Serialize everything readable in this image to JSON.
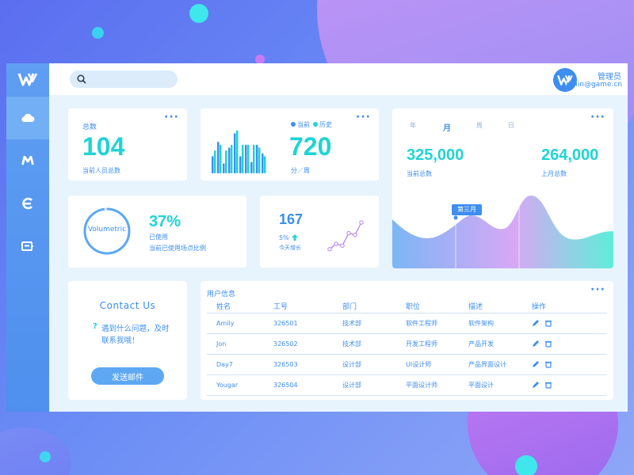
{
  "app": {
    "logo_text": "W"
  },
  "search": {
    "placeholder": ""
  },
  "user": {
    "avatar_text": "W",
    "name": "管理员",
    "email": "admin@game.cn"
  },
  "colors": {
    "accent": "#3d8ef0",
    "teal": "#1fd4d4",
    "sidebar": "#5f9ef2"
  },
  "sidebar": {
    "items": [
      {
        "icon": "cloud-icon"
      },
      {
        "icon": "m-icon"
      },
      {
        "icon": "e-icon"
      },
      {
        "icon": "card-icon"
      }
    ]
  },
  "total": {
    "title": "总数",
    "value": "104",
    "subtitle": "当前人员总数"
  },
  "bars_card": {
    "legend_current": "当前",
    "legend_history": "历史",
    "value": "720",
    "subtitle": "分／周",
    "chart_data": {
      "type": "bar",
      "series": [
        {
          "name": "当前",
          "values": [
            12,
            22,
            7,
            18,
            28,
            12,
            20,
            8,
            20,
            14
          ]
        },
        {
          "name": "历史",
          "values": [
            16,
            20,
            16,
            20,
            30,
            20,
            20,
            20,
            18,
            12
          ]
        }
      ]
    }
  },
  "volumetric": {
    "ring_label": "Volumetric",
    "percent": "37%",
    "used": "已使用",
    "subtitle": "当前已使用场点比例",
    "fraction": 0.37
  },
  "today": {
    "value": "167",
    "growth": "5%",
    "subtitle": "今天增长",
    "chart_data": {
      "type": "line",
      "values": [
        1,
        4,
        3,
        10,
        9,
        16
      ]
    }
  },
  "monthly": {
    "tabs": [
      {
        "label": "年"
      },
      {
        "label": "月"
      },
      {
        "label": "周"
      },
      {
        "label": "日"
      }
    ],
    "current_value": "325,000",
    "current_label": "当前总数",
    "last_value": "264,000",
    "last_label": "上月总数",
    "tooltip": "第三月"
  },
  "contact": {
    "title": "Contact Us",
    "question_mark": "?",
    "line1": "遇到什么问题，及时",
    "line2": "联系我哦！",
    "button": "发送邮件"
  },
  "users": {
    "title": "用户信息",
    "columns": [
      "姓名",
      "工号",
      "部门",
      "职位",
      "描述",
      "操作"
    ],
    "rows": [
      [
        "Amily",
        "326501",
        "技术部",
        "软件工程师",
        "软件架构"
      ],
      [
        "Jon",
        "326502",
        "技术部",
        "开发工程师",
        "产品开发"
      ],
      [
        "Day7",
        "326503",
        "设计部",
        "UI设计师",
        "产品界面设计"
      ],
      [
        "Yougar",
        "326504",
        "设计部",
        "平面设计师",
        "平面设计"
      ]
    ]
  }
}
